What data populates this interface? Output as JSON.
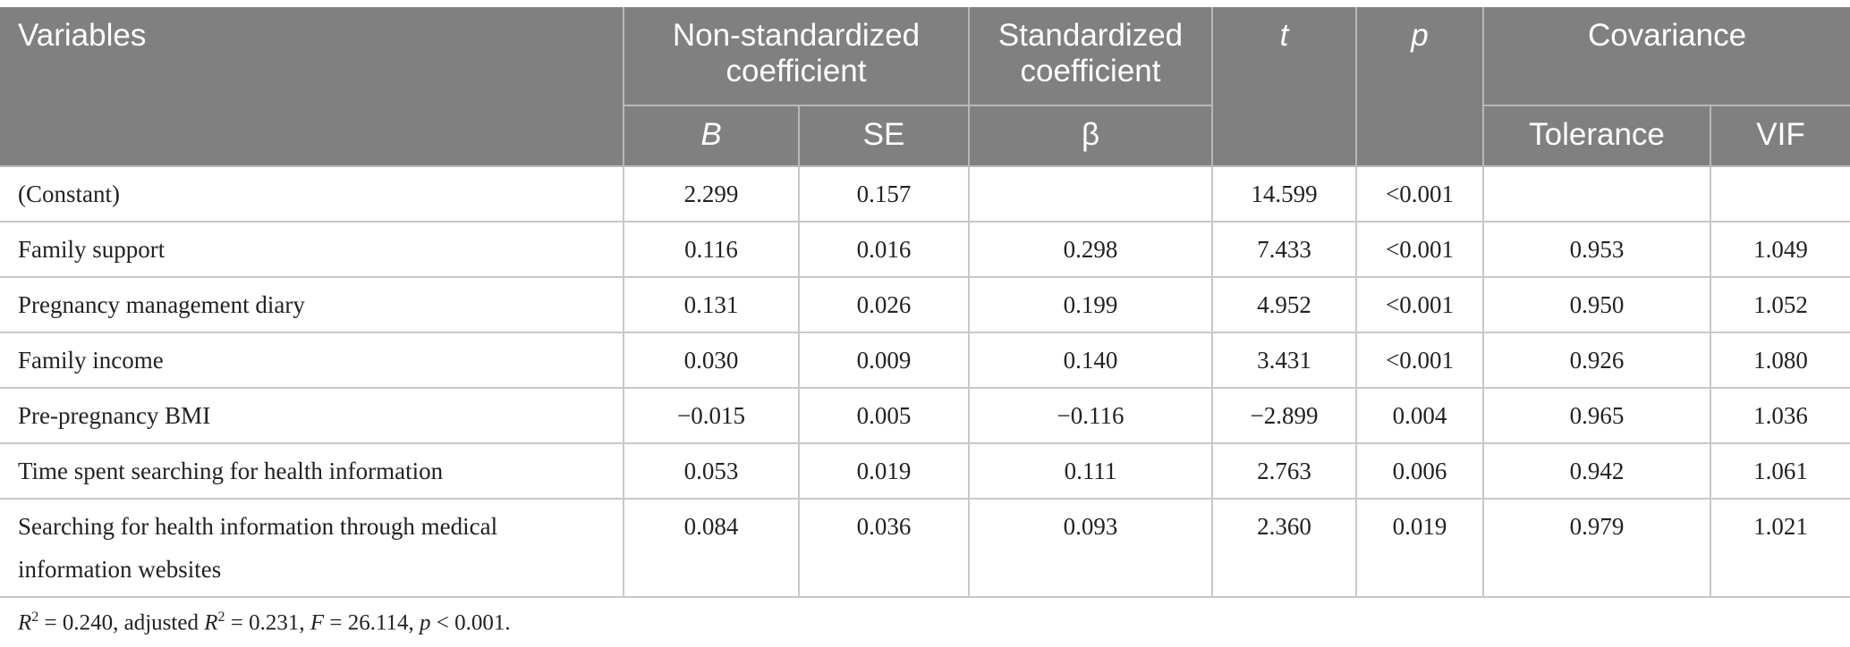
{
  "header": {
    "variables": "Variables",
    "non_std": "Non-standardized coefficient",
    "std": "Standardized coefficient",
    "t": "t",
    "p": "p",
    "covariance": "Covariance",
    "b": "B",
    "se": "SE",
    "beta": "β",
    "tolerance": "Tolerance",
    "vif": "VIF"
  },
  "rows": [
    {
      "variable": "(Constant)",
      "b": "2.299",
      "se": "0.157",
      "beta": "",
      "t": "14.599",
      "p": "<0.001",
      "tolerance": "",
      "vif": ""
    },
    {
      "variable": "Family support",
      "b": "0.116",
      "se": "0.016",
      "beta": "0.298",
      "t": "7.433",
      "p": "<0.001",
      "tolerance": "0.953",
      "vif": "1.049"
    },
    {
      "variable": "Pregnancy management diary",
      "b": "0.131",
      "se": "0.026",
      "beta": "0.199",
      "t": "4.952",
      "p": "<0.001",
      "tolerance": "0.950",
      "vif": "1.052"
    },
    {
      "variable": "Family income",
      "b": "0.030",
      "se": "0.009",
      "beta": "0.140",
      "t": "3.431",
      "p": "<0.001",
      "tolerance": "0.926",
      "vif": "1.080"
    },
    {
      "variable": "Pre-pregnancy BMI",
      "b": "−0.015",
      "se": "0.005",
      "beta": "−0.116",
      "t": "−2.899",
      "p": "0.004",
      "tolerance": "0.965",
      "vif": "1.036"
    },
    {
      "variable": "Time spent searching for health information",
      "b": "0.053",
      "se": "0.019",
      "beta": "0.111",
      "t": "2.763",
      "p": "0.006",
      "tolerance": "0.942",
      "vif": "1.061"
    },
    {
      "variable": "Searching for health information through medical information websites",
      "b": "0.084",
      "se": "0.036",
      "beta": "0.093",
      "t": "2.360",
      "p": "0.019",
      "tolerance": "0.979",
      "vif": "1.021"
    }
  ],
  "footnote": {
    "r2_label": "R",
    "r2_sup": "2",
    "r2_value": " = 0.240, adjusted ",
    "adj_label": "R",
    "adj_sup": "2",
    "adj_value": " = 0.231, ",
    "f_label": "F",
    "f_value": " = 26.114, ",
    "p_label": "p",
    "p_value": " < 0.001."
  }
}
